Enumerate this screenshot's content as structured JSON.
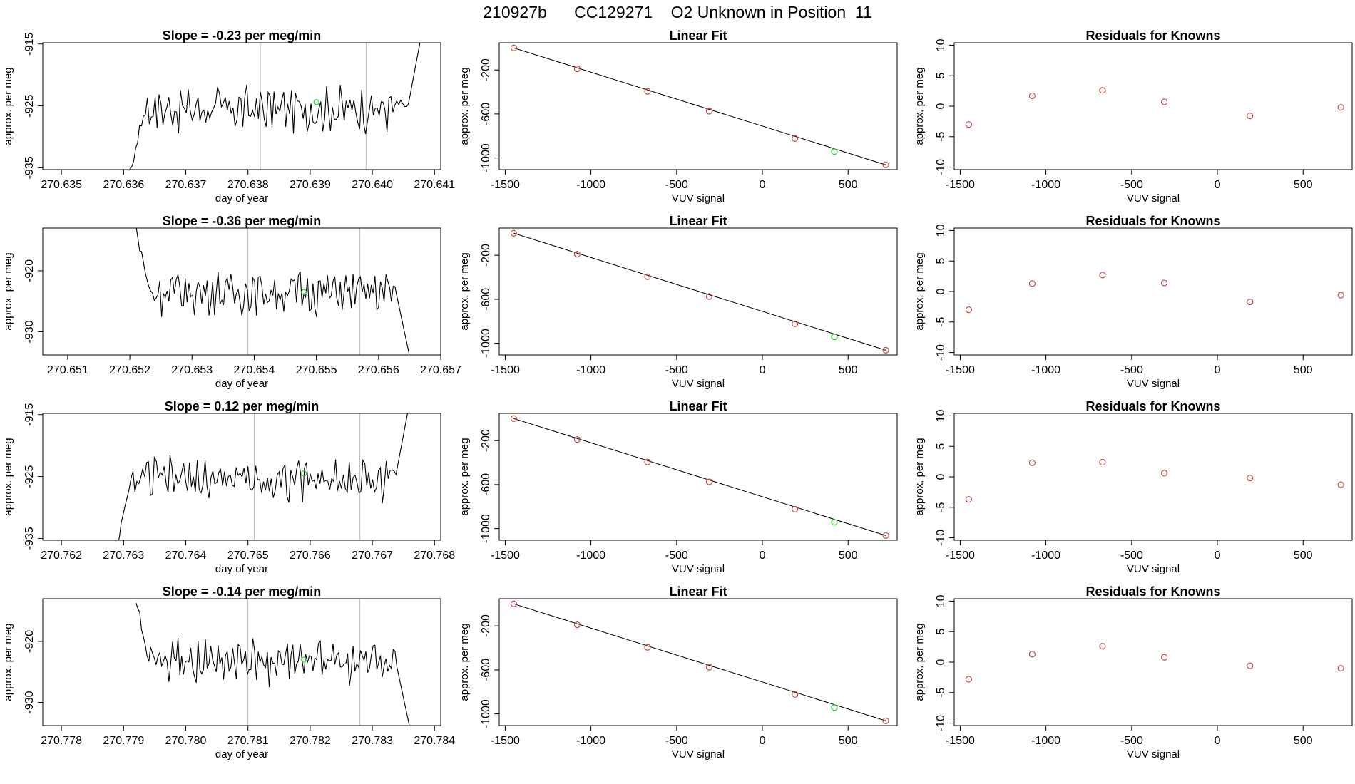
{
  "figure": {
    "title": "210927b      CC129271    O2 Unknown in Position  11"
  },
  "chart_data": [
    {
      "type": "line",
      "panel": "time",
      "row": 0,
      "title": "Slope =  -0.23  per meg/min",
      "xlabel": "day of year",
      "ylabel": "approx. per meg",
      "xlim": [
        270.6347,
        270.6411
      ],
      "ylim": [
        -935.3,
        -914.8
      ],
      "xticks": [
        "270.635",
        "270.636",
        "270.637",
        "270.638",
        "270.639",
        "270.640",
        "270.641"
      ],
      "xtick_values": [
        270.635,
        270.636,
        270.637,
        270.638,
        270.639,
        270.64,
        270.641
      ],
      "yticks": [
        "-935",
        "-925",
        "-915"
      ],
      "ytick_values": [
        -935,
        -925,
        -915
      ],
      "vlines": [
        270.6382,
        270.6399
      ],
      "series_start": 270.6361,
      "series_end": 270.6408,
      "baseline": -925.5,
      "start_y": -936,
      "end_y": -913,
      "highlight": {
        "x": 270.6391,
        "y": -924.4,
        "color": "#2ecc40"
      },
      "line_color": "#000000"
    },
    {
      "type": "line",
      "panel": "fit",
      "row": 0,
      "title": "Linear Fit",
      "xlabel": "VUV signal",
      "ylabel": "approx. per meg",
      "xlim": [
        -1535,
        786
      ],
      "ylim": [
        -1106,
        47
      ],
      "xticks": [
        "-1500",
        "-1000",
        "-500",
        "0",
        "500"
      ],
      "xtick_values": [
        -1500,
        -1000,
        -500,
        0,
        500
      ],
      "yticks": [
        "-1000",
        "-600",
        "-200"
      ],
      "ytick_values": [
        -1000,
        -600,
        -200
      ],
      "points": {
        "x": [
          -1450,
          -1080,
          -670,
          -310,
          190,
          720
        ],
        "y": [
          0,
          -190,
          -395,
          -575,
          -823,
          -1063
        ]
      },
      "highlight": {
        "x": 420,
        "y": -942,
        "color": "#2ecc40"
      },
      "fit_line": {
        "x": [
          -1450,
          720
        ],
        "y": [
          0,
          -1063
        ]
      },
      "point_color": "#c0504d",
      "line_color": "#000000"
    },
    {
      "type": "scatter",
      "panel": "residuals",
      "row": 0,
      "title": "Residuals for Knowns",
      "xlabel": "VUV signal",
      "ylabel": "approx. per meg",
      "xlim": [
        -1535,
        786
      ],
      "ylim": [
        -10.4,
        10.4
      ],
      "xticks": [
        "-1500",
        "-1000",
        "-500",
        "0",
        "500"
      ],
      "xtick_values": [
        -1500,
        -1000,
        -500,
        0,
        500
      ],
      "yticks": [
        "-10",
        "-5",
        "0",
        "5",
        "10"
      ],
      "ytick_values": [
        -10,
        -5,
        0,
        5,
        10
      ],
      "points": {
        "x": [
          -1450,
          -1080,
          -670,
          -310,
          190,
          720
        ],
        "y": [
          -3.0,
          1.7,
          2.6,
          0.7,
          -1.6,
          -0.2
        ]
      },
      "point_color": "#c0504d"
    },
    {
      "type": "line",
      "panel": "time",
      "row": 1,
      "title": "Slope =  -0.36  per meg/min",
      "xlabel": "day of year",
      "ylabel": "approx. per meg",
      "xlim": [
        270.6506,
        270.657
      ],
      "ylim": [
        -933.8,
        -913.0
      ],
      "xticks": [
        "270.651",
        "270.652",
        "270.653",
        "270.654",
        "270.655",
        "270.656",
        "270.657"
      ],
      "xtick_values": [
        270.651,
        270.652,
        270.653,
        270.654,
        270.655,
        270.656,
        270.657
      ],
      "yticks": [
        "-930",
        "-920"
      ],
      "ytick_values": [
        -930,
        -920
      ],
      "vlines": [
        270.6539,
        270.6557
      ],
      "series_start": 270.6521,
      "series_end": 270.6565,
      "baseline": -923.5,
      "start_y": -913,
      "end_y": -934,
      "highlight": {
        "x": 270.6548,
        "y": -923.5,
        "color": "#2ecc40"
      },
      "line_color": "#000000"
    },
    {
      "type": "line",
      "panel": "fit",
      "row": 1,
      "title": "Linear Fit",
      "xlabel": "VUV signal",
      "ylabel": "approx. per meg",
      "xlim": [
        -1535,
        786
      ],
      "ylim": [
        -1106,
        47
      ],
      "xticks": [
        "-1500",
        "-1000",
        "-500",
        "0",
        "500"
      ],
      "xtick_values": [
        -1500,
        -1000,
        -500,
        0,
        500
      ],
      "yticks": [
        "-1000",
        "-600",
        "-200"
      ],
      "ytick_values": [
        -1000,
        -600,
        -200
      ],
      "points": {
        "x": [
          -1450,
          -1080,
          -670,
          -310,
          190,
          720
        ],
        "y": [
          0,
          -190,
          -395,
          -575,
          -823,
          -1063
        ]
      },
      "highlight": {
        "x": 420,
        "y": -942,
        "color": "#2ecc40"
      },
      "fit_line": {
        "x": [
          -1450,
          720
        ],
        "y": [
          0,
          -1063
        ]
      },
      "point_color": "#c0504d",
      "line_color": "#000000"
    },
    {
      "type": "scatter",
      "panel": "residuals",
      "row": 1,
      "title": "Residuals for Knowns",
      "xlabel": "VUV signal",
      "ylabel": "approx. per meg",
      "xlim": [
        -1535,
        786
      ],
      "ylim": [
        -10.4,
        10.4
      ],
      "xticks": [
        "-1500",
        "-1000",
        "-500",
        "0",
        "500"
      ],
      "xtick_values": [
        -1500,
        -1000,
        -500,
        0,
        500
      ],
      "yticks": [
        "-10",
        "-5",
        "0",
        "5",
        "10"
      ],
      "ytick_values": [
        -10,
        -5,
        0,
        5,
        10
      ],
      "points": {
        "x": [
          -1450,
          -1080,
          -670,
          -310,
          190,
          720
        ],
        "y": [
          -3.0,
          1.3,
          2.7,
          1.4,
          -1.7,
          -0.6
        ]
      },
      "point_color": "#c0504d"
    },
    {
      "type": "line",
      "panel": "time",
      "row": 2,
      "title": "Slope =  0.12  per meg/min",
      "xlabel": "day of year",
      "ylabel": "approx. per meg",
      "xlim": [
        270.7617,
        270.7681
      ],
      "ylim": [
        -935.3,
        -914.8
      ],
      "xticks": [
        "270.762",
        "270.763",
        "270.764",
        "270.765",
        "270.766",
        "270.767",
        "270.768"
      ],
      "xtick_values": [
        270.762,
        270.763,
        270.764,
        270.765,
        270.766,
        270.767,
        270.768
      ],
      "yticks": [
        "-935",
        "-925",
        "-915"
      ],
      "ytick_values": [
        -935,
        -925,
        -915
      ],
      "vlines": [
        270.7651,
        270.7668
      ],
      "series_start": 270.7629,
      "series_end": 270.7676,
      "baseline": -925.5,
      "start_y": -936,
      "end_y": -913,
      "highlight": {
        "x": 270.7659,
        "y": -924.5,
        "color": "#2ecc40"
      },
      "line_color": "#000000"
    },
    {
      "type": "line",
      "panel": "fit",
      "row": 2,
      "title": "Linear Fit",
      "xlabel": "VUV signal",
      "ylabel": "approx. per meg",
      "xlim": [
        -1535,
        786
      ],
      "ylim": [
        -1106,
        47
      ],
      "xticks": [
        "-1500",
        "-1000",
        "-500",
        "0",
        "500"
      ],
      "xtick_values": [
        -1500,
        -1000,
        -500,
        0,
        500
      ],
      "yticks": [
        "-1000",
        "-600",
        "-200"
      ],
      "ytick_values": [
        -1000,
        -600,
        -200
      ],
      "points": {
        "x": [
          -1450,
          -1080,
          -670,
          -310,
          190,
          720
        ],
        "y": [
          0,
          -190,
          -395,
          -575,
          -823,
          -1063
        ]
      },
      "highlight": {
        "x": 420,
        "y": -942,
        "color": "#2ecc40"
      },
      "fit_line": {
        "x": [
          -1450,
          720
        ],
        "y": [
          0,
          -1063
        ]
      },
      "point_color": "#c0504d",
      "line_color": "#000000"
    },
    {
      "type": "scatter",
      "panel": "residuals",
      "row": 2,
      "title": "Residuals for Knowns",
      "xlabel": "VUV signal",
      "ylabel": "approx. per meg",
      "xlim": [
        -1535,
        786
      ],
      "ylim": [
        -10.4,
        10.4
      ],
      "xticks": [
        "-1500",
        "-1000",
        "-500",
        "0",
        "500"
      ],
      "xtick_values": [
        -1500,
        -1000,
        -500,
        0,
        500
      ],
      "yticks": [
        "-10",
        "-5",
        "0",
        "5",
        "10"
      ],
      "ytick_values": [
        -10,
        -5,
        0,
        5,
        10
      ],
      "points": {
        "x": [
          -1450,
          -1080,
          -670,
          -310,
          190,
          720
        ],
        "y": [
          -3.7,
          2.3,
          2.4,
          0.6,
          -0.2,
          -1.3
        ]
      },
      "point_color": "#c0504d"
    },
    {
      "type": "line",
      "panel": "time",
      "row": 3,
      "title": "Slope =  -0.14  per meg/min",
      "xlabel": "day of year",
      "ylabel": "approx. per meg",
      "xlim": [
        270.7777,
        270.7841
      ],
      "ylim": [
        -933.8,
        -913.0
      ],
      "xticks": [
        "270.778",
        "270.779",
        "270.780",
        "270.781",
        "270.782",
        "270.783",
        "270.784"
      ],
      "xtick_values": [
        270.778,
        270.779,
        270.78,
        270.781,
        270.782,
        270.783,
        270.784
      ],
      "yticks": [
        "-930",
        "-920"
      ],
      "ytick_values": [
        -930,
        -920
      ],
      "vlines": [
        270.781,
        270.7828
      ],
      "series_start": 270.7792,
      "series_end": 270.7836,
      "baseline": -923.5,
      "start_y": -913,
      "end_y": -934,
      "highlight": {
        "x": 270.7819,
        "y": -923.0,
        "color": "#2ecc40"
      },
      "line_color": "#000000"
    },
    {
      "type": "line",
      "panel": "fit",
      "row": 3,
      "title": "Linear Fit",
      "xlabel": "VUV signal",
      "ylabel": "approx. per meg",
      "xlim": [
        -1535,
        786
      ],
      "ylim": [
        -1106,
        47
      ],
      "xticks": [
        "-1500",
        "-1000",
        "-500",
        "0",
        "500"
      ],
      "xtick_values": [
        -1500,
        -1000,
        -500,
        0,
        500
      ],
      "yticks": [
        "-1000",
        "-600",
        "-200"
      ],
      "ytick_values": [
        -1000,
        -600,
        -200
      ],
      "points": {
        "x": [
          -1450,
          -1080,
          -670,
          -310,
          190,
          720
        ],
        "y": [
          0,
          -190,
          -395,
          -575,
          -823,
          -1063
        ]
      },
      "highlight": {
        "x": 420,
        "y": -942,
        "color": "#2ecc40"
      },
      "fit_line": {
        "x": [
          -1450,
          720
        ],
        "y": [
          0,
          -1063
        ]
      },
      "point_color": "#c0504d",
      "line_color": "#000000"
    },
    {
      "type": "scatter",
      "panel": "residuals",
      "row": 3,
      "title": "Residuals for Knowns",
      "xlabel": "VUV signal",
      "ylabel": "approx. per meg",
      "xlim": [
        -1535,
        786
      ],
      "ylim": [
        -10.4,
        10.4
      ],
      "xticks": [
        "-1500",
        "-1000",
        "-500",
        "0",
        "500"
      ],
      "xtick_values": [
        -1500,
        -1000,
        -500,
        0,
        500
      ],
      "yticks": [
        "-10",
        "-5",
        "0",
        "5",
        "10"
      ],
      "ytick_values": [
        -10,
        -5,
        0,
        5,
        10
      ],
      "points": {
        "x": [
          -1450,
          -1080,
          -670,
          -310,
          190,
          720
        ],
        "y": [
          -2.8,
          1.3,
          2.6,
          0.8,
          -0.6,
          -1.0
        ]
      },
      "point_color": "#c0504d"
    }
  ]
}
